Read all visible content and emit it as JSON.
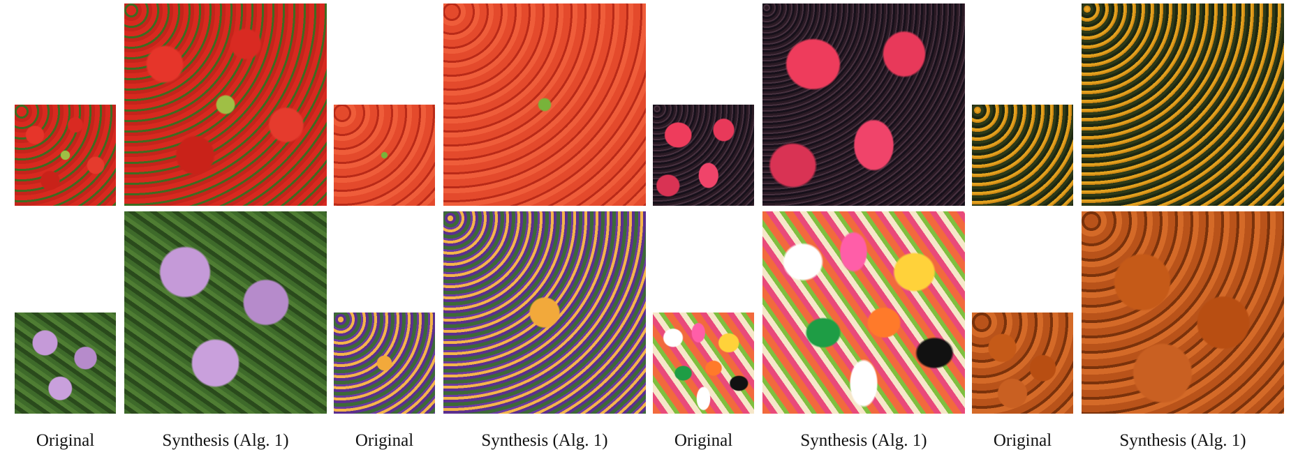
{
  "captions": {
    "original_label": "Original",
    "synthesis_label": "Synthesis (Alg. 1)"
  },
  "rows": [
    {
      "pairs": [
        {
          "original": "radish-texture",
          "synthesis": "radish-texture"
        },
        {
          "original": "pepper-texture",
          "synthesis": "pepper-texture"
        },
        {
          "original": "berry-texture",
          "synthesis": "berry-texture"
        },
        {
          "original": "orange-flower-texture",
          "synthesis": "orange-flower-texture"
        }
      ]
    },
    {
      "pairs": [
        {
          "original": "phlox-texture",
          "synthesis": "phlox-texture"
        },
        {
          "original": "pansy-texture",
          "synthesis": "pansy-texture"
        },
        {
          "original": "jellybean-texture",
          "synthesis": "jellybean-texture"
        },
        {
          "original": "pumpkin-texture",
          "synthesis": "pumpkin-texture"
        }
      ]
    }
  ]
}
